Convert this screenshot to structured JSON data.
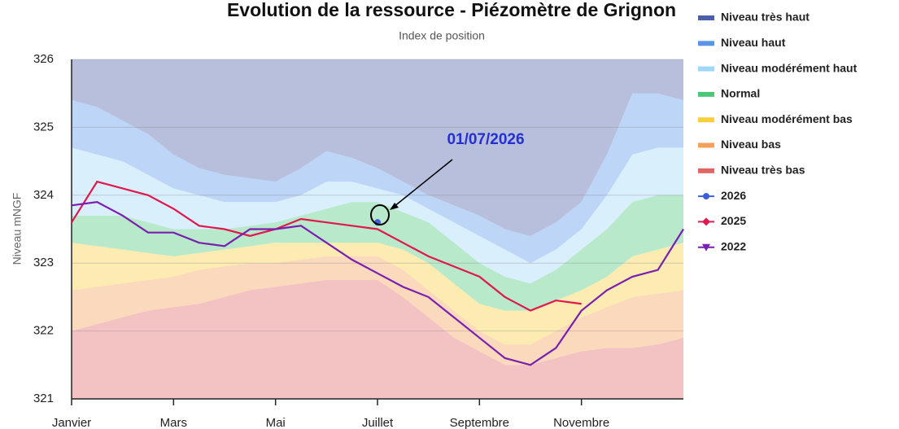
{
  "chart_data": {
    "type": "area-line",
    "title": "Evolution de la ressource - Piézomètre de Grignon",
    "subtitle": "Index de position",
    "y_label": "Niveau  mNGF",
    "annotation": "01/07/2026",
    "categories": [
      "Janvier",
      null,
      null,
      null,
      "Mars",
      null,
      null,
      null,
      "Mai",
      null,
      null,
      null,
      "Juillet",
      null,
      null,
      null,
      "Septembre",
      null,
      null,
      null,
      "Novembre",
      null,
      null,
      null,
      null
    ],
    "ylim": [
      321,
      326
    ],
    "yticks": [
      321,
      322,
      323,
      324,
      325,
      326
    ],
    "grid": true,
    "legend": "right",
    "series": [
      {
        "name": "Niveau très haut",
        "color": "#4a5fa8",
        "stacked": true,
        "values": [
          0.6,
          0.7,
          0.9,
          1.1,
          1.4,
          1.6,
          1.7,
          1.75,
          1.8,
          1.6,
          1.35,
          1.45,
          1.6,
          1.8,
          2.0,
          2.15,
          2.3,
          2.5,
          2.6,
          2.4,
          2.1,
          1.4,
          0.5,
          0.5,
          0.6
        ]
      },
      {
        "name": "Niveau haut",
        "color": "#5b95e8",
        "stacked": true,
        "values": [
          0.7,
          0.7,
          0.6,
          0.6,
          0.5,
          0.4,
          0.4,
          0.35,
          0.3,
          0.4,
          0.45,
          0.35,
          0.3,
          0.2,
          0.2,
          0.25,
          0.3,
          0.3,
          0.4,
          0.4,
          0.4,
          0.6,
          0.9,
          0.8,
          0.7
        ]
      },
      {
        "name": "Niveau modérément haut",
        "color": "#9fd8f7",
        "stacked": true,
        "values": [
          1.0,
          0.9,
          0.8,
          0.7,
          0.6,
          0.5,
          0.4,
          0.35,
          0.3,
          0.3,
          0.4,
          0.3,
          0.2,
          0.25,
          0.2,
          0.3,
          0.4,
          0.4,
          0.3,
          0.3,
          0.3,
          0.5,
          0.7,
          0.7,
          0.7
        ]
      },
      {
        "name": "Normal",
        "color": "#4cc77a",
        "stacked": true,
        "values": [
          0.4,
          0.45,
          0.5,
          0.45,
          0.4,
          0.35,
          0.3,
          0.3,
          0.3,
          0.4,
          0.5,
          0.6,
          0.6,
          0.55,
          0.6,
          0.6,
          0.6,
          0.5,
          0.4,
          0.45,
          0.6,
          0.7,
          0.8,
          0.8,
          0.7
        ]
      },
      {
        "name": "Niveau modérément bas",
        "color": "#f9cf3e",
        "stacked": true,
        "values": [
          0.7,
          0.6,
          0.5,
          0.4,
          0.3,
          0.25,
          0.25,
          0.25,
          0.3,
          0.25,
          0.2,
          0.2,
          0.2,
          0.3,
          0.4,
          0.4,
          0.4,
          0.5,
          0.5,
          0.45,
          0.4,
          0.45,
          0.6,
          0.65,
          0.7
        ]
      },
      {
        "name": "Niveau bas",
        "color": "#f5a05a",
        "stacked": true,
        "values": [
          0.6,
          0.55,
          0.5,
          0.45,
          0.45,
          0.5,
          0.45,
          0.4,
          0.35,
          0.35,
          0.35,
          0.35,
          0.35,
          0.4,
          0.4,
          0.4,
          0.3,
          0.3,
          0.3,
          0.4,
          0.5,
          0.6,
          0.75,
          0.75,
          0.7
        ]
      },
      {
        "name": "Niveau très bas",
        "color": "#e06666",
        "stacked": true,
        "values": [
          1.0,
          1.1,
          1.2,
          1.3,
          1.35,
          1.4,
          1.5,
          1.6,
          1.65,
          1.7,
          1.75,
          1.75,
          1.75,
          1.5,
          1.2,
          0.9,
          0.7,
          0.5,
          0.5,
          0.6,
          0.7,
          0.75,
          0.75,
          0.8,
          0.9
        ]
      },
      {
        "name": "2026",
        "color": "#3b5fd9",
        "marker": "circle",
        "values": [
          null,
          null,
          null,
          null,
          null,
          null,
          null,
          null,
          null,
          null,
          null,
          null,
          323.6,
          null,
          null,
          null,
          null,
          null,
          null,
          null,
          null,
          null,
          null,
          null,
          null
        ]
      },
      {
        "name": "2025",
        "color": "#e0184f",
        "marker": "diamond",
        "values": [
          323.6,
          324.2,
          324.1,
          324.0,
          323.8,
          323.55,
          323.5,
          323.4,
          323.5,
          323.65,
          323.6,
          323.55,
          323.5,
          323.3,
          323.1,
          322.95,
          322.8,
          322.5,
          322.3,
          322.45,
          322.4,
          null,
          null,
          null,
          null
        ]
      },
      {
        "name": "2022",
        "color": "#7a1fb0",
        "marker": "triangle-down",
        "values": [
          323.85,
          323.9,
          323.7,
          323.45,
          323.45,
          323.3,
          323.25,
          323.5,
          323.5,
          323.55,
          323.3,
          323.05,
          322.85,
          322.65,
          322.5,
          322.2,
          321.9,
          321.6,
          321.5,
          321.75,
          322.3,
          322.6,
          322.8,
          322.9,
          323.5
        ]
      }
    ]
  }
}
